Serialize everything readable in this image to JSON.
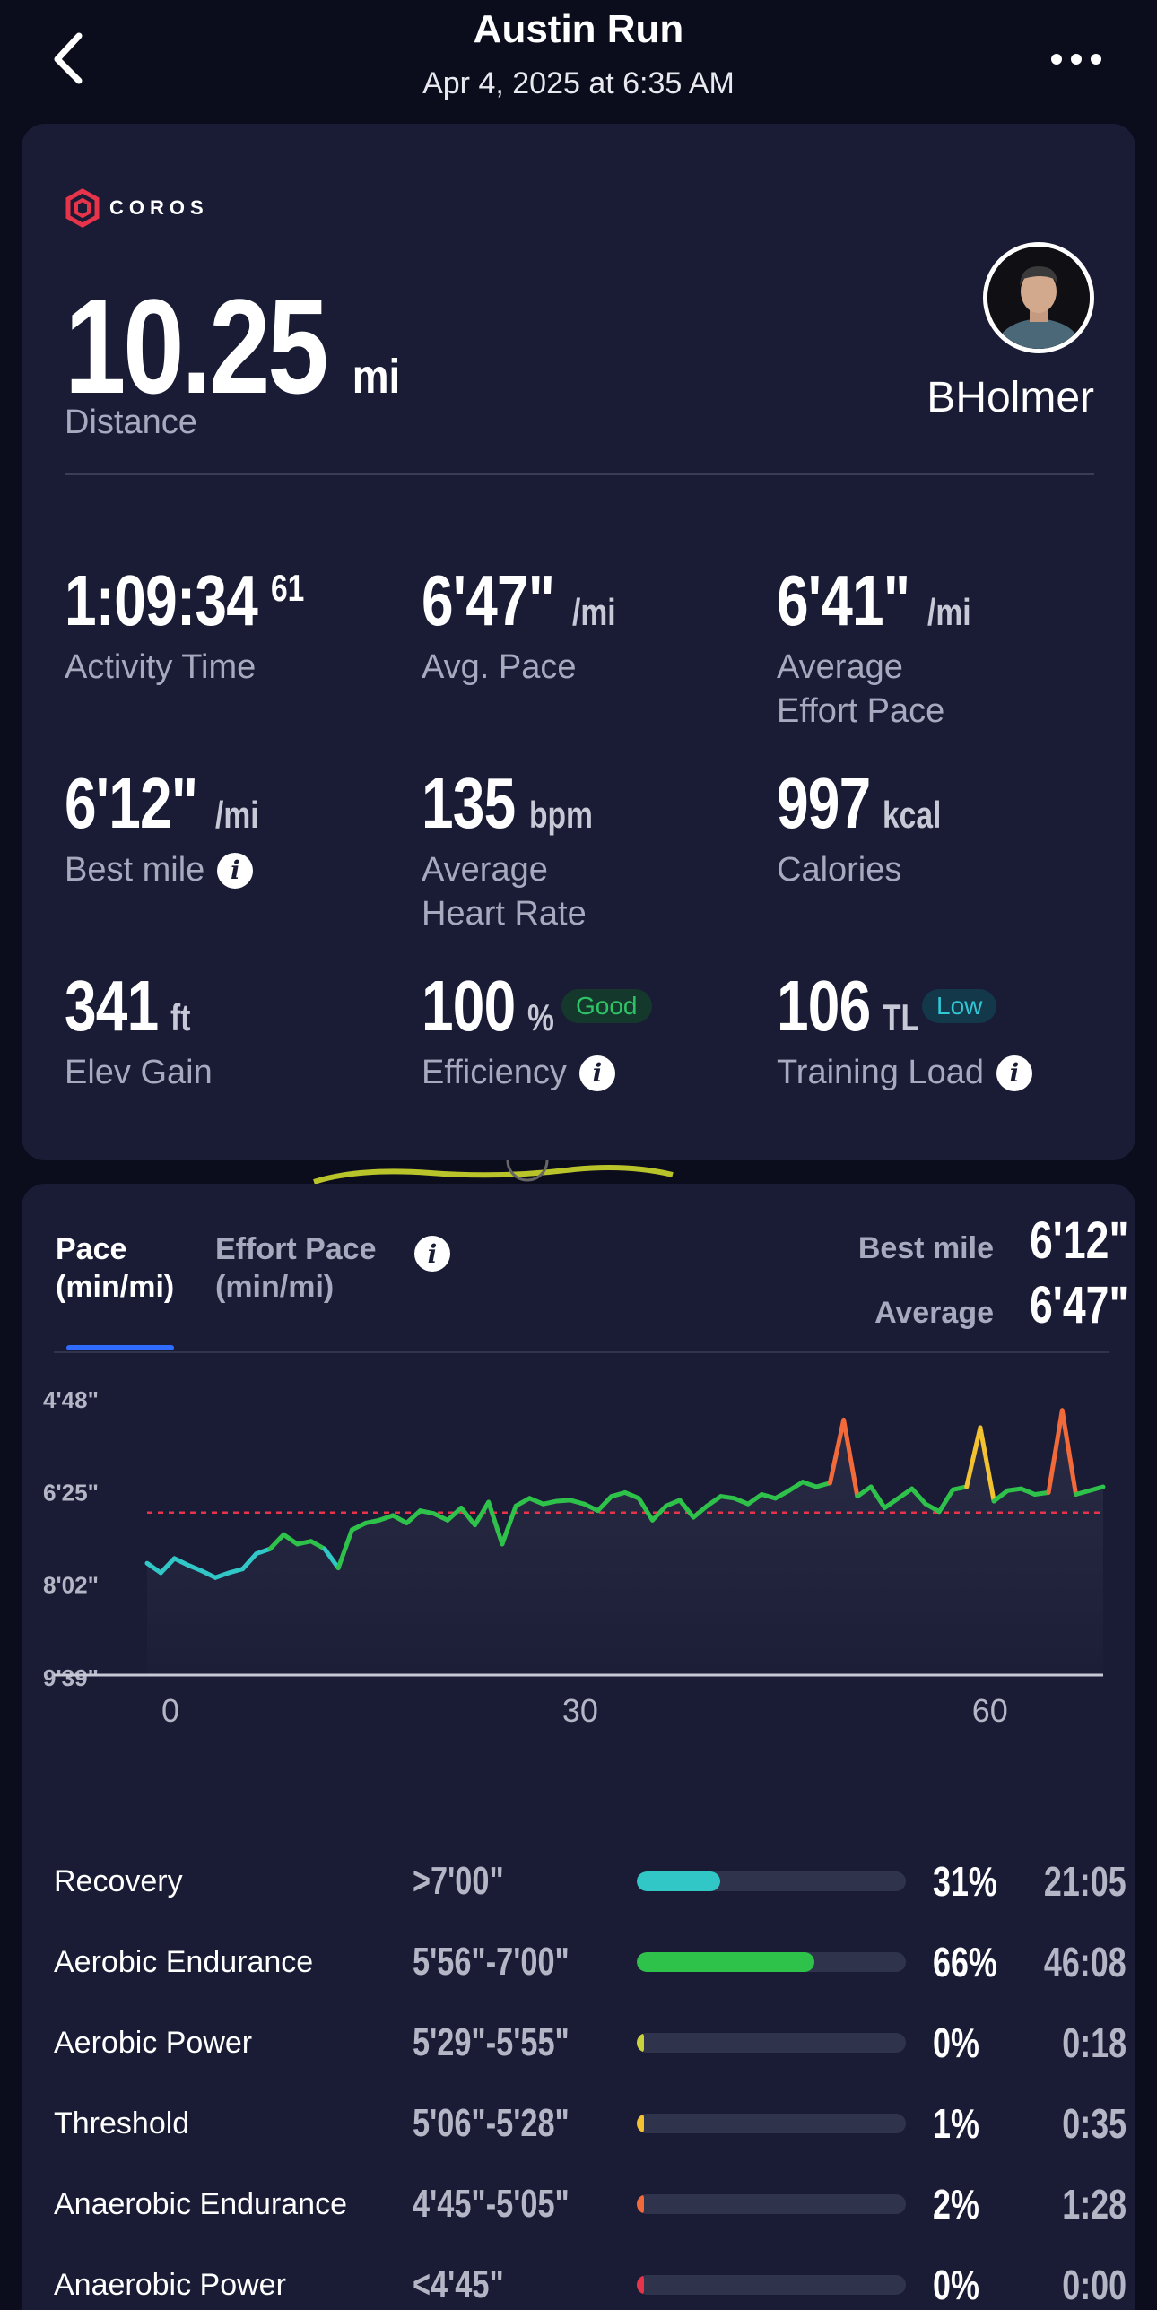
{
  "header": {
    "title": "Austin Run",
    "subtitle": "Apr 4, 2025 at 6:35 AM"
  },
  "summary": {
    "brand": "COROS",
    "distance_value": "10.25",
    "distance_unit": "mi",
    "distance_label": "Distance",
    "username": "BHolmer",
    "stats": [
      {
        "value": "1:09:34",
        "unit": "61",
        "label": "Activity Time"
      },
      {
        "value": "6'47\"",
        "unit": "/mi",
        "label": "Avg. Pace"
      },
      {
        "value": "6'41\"",
        "unit": "/mi",
        "label": "Average Effort Pace"
      },
      {
        "value": "6'12\"",
        "unit": "/mi",
        "label": "Best mile"
      },
      {
        "value": "135",
        "unit": "bpm",
        "label": "Average Heart Rate"
      },
      {
        "value": "997",
        "unit": "kcal",
        "label": "Calories"
      },
      {
        "value": "341",
        "unit": "ft",
        "label": "Elev Gain"
      },
      {
        "value": "100",
        "unit": "%",
        "label": "Efficiency",
        "badge": "Good"
      },
      {
        "value": "106",
        "unit": "TL",
        "label": "Training Load",
        "badge": "Low"
      }
    ]
  },
  "pace": {
    "tab_active": "Pace (min/mi)",
    "tab_active_line1": "Pace",
    "tab_active_line2": "(min/mi)",
    "tab_inactive_line1": "Effort Pace",
    "tab_inactive_line2": "(min/mi)",
    "best_mile_label": "Best mile",
    "best_mile_value": "6'12\"",
    "average_label": "Average",
    "average_value": "6'47\"",
    "zones": [
      {
        "name": "Recovery",
        "range": ">7'00\"",
        "percent": "31%",
        "fraction": 0.31,
        "time": "21:05",
        "color": "#31c7c7"
      },
      {
        "name": "Aerobic Endurance",
        "range": "5'56\"-7'00\"",
        "percent": "66%",
        "fraction": 0.66,
        "time": "46:08",
        "color": "#2fc24a"
      },
      {
        "name": "Aerobic Power",
        "range": "5'29\"-5'55\"",
        "percent": "0%",
        "fraction": 0.0,
        "time": "0:18",
        "color": "#c8d23a"
      },
      {
        "name": "Threshold",
        "range": "5'06\"-5'28\"",
        "percent": "1%",
        "fraction": 0.01,
        "time": "0:35",
        "color": "#f2c230"
      },
      {
        "name": "Anaerobic Endurance",
        "range": "4'45\"-5'05\"",
        "percent": "2%",
        "fraction": 0.02,
        "time": "1:28",
        "color": "#f26a3a"
      },
      {
        "name": "Anaerobic Power",
        "range": "<4'45\"",
        "percent": "0%",
        "fraction": 0.0,
        "time": "0:00",
        "color": "#e8344a"
      }
    ]
  },
  "chart_data": {
    "type": "line",
    "title": "",
    "xlabel": "",
    "ylabel": "",
    "x_ticks": [
      "0",
      "30",
      "60"
    ],
    "y_ticks": [
      "4'48\"",
      "6'25\"",
      "8'02\"",
      "9'39\""
    ],
    "xlim": [
      0,
      70
    ],
    "ylim_seconds_per_mile": [
      579,
      288
    ],
    "reference_line": "6'47\"",
    "series": [
      {
        "x": [
          0,
          1,
          2,
          3,
          4,
          5,
          6,
          7,
          8,
          9,
          10,
          11,
          12,
          13,
          14,
          15,
          16,
          17,
          18,
          19,
          20,
          21,
          22,
          23,
          24,
          25,
          26,
          27,
          28,
          29,
          30,
          31,
          32,
          33,
          34,
          35,
          36,
          37,
          38,
          39,
          40,
          41,
          42,
          43,
          44,
          45,
          46,
          47,
          48,
          49,
          50,
          51,
          52,
          53,
          54,
          55,
          56,
          57,
          58,
          59,
          60,
          61,
          62,
          63,
          64,
          65,
          66,
          67,
          68,
          69,
          70
        ],
        "pace_seconds_per_mile": [
          460,
          470,
          455,
          462,
          468,
          475,
          470,
          466,
          450,
          445,
          430,
          440,
          437,
          445,
          465,
          425,
          418,
          415,
          410,
          418,
          405,
          408,
          415,
          402,
          420,
          396,
          440,
          400,
          392,
          398,
          395,
          394,
          398,
          405,
          390,
          386,
          392,
          415,
          400,
          394,
          412,
          400,
          390,
          392,
          398,
          388,
          392,
          384,
          375,
          380,
          376,
          310,
          390,
          380,
          402,
          392,
          382,
          398,
          406,
          383,
          380,
          318,
          395,
          384,
          382,
          388,
          386,
          300,
          388,
          384,
          380
        ],
        "color_scale": "cyan (slow) to green to yellow/orange/red (fast)"
      }
    ]
  }
}
